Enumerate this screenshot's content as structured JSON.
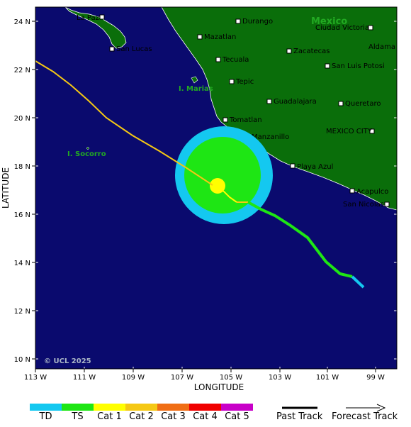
{
  "map": {
    "copyright": "© UCL 2025",
    "axis": {
      "xlabel": "LONGITUDE",
      "ylabel": "LATITUDE",
      "x_ticks": [
        "113 W",
        "111 W",
        "109 W",
        "107 W",
        "105 W",
        "103 W",
        "101 W",
        "99 W"
      ],
      "y_ticks": [
        "24 N",
        "22 N",
        "20 N",
        "18 N",
        "16 N",
        "14 N",
        "12 N",
        "10 N"
      ]
    },
    "country_label": "Mexico",
    "islands": [
      "I. Marias",
      "I. Socorro"
    ],
    "cities": [
      {
        "name": "La Paz"
      },
      {
        "name": "San Lucas"
      },
      {
        "name": "Durango"
      },
      {
        "name": "Mazatlan"
      },
      {
        "name": "Tecuala"
      },
      {
        "name": "Tepic"
      },
      {
        "name": "Zacatecas"
      },
      {
        "name": "Ciudad Victoria"
      },
      {
        "name": "Aldama"
      },
      {
        "name": "San Luis Potosi"
      },
      {
        "name": "Guadalajara"
      },
      {
        "name": "Queretaro"
      },
      {
        "name": "Tomatlan"
      },
      {
        "name": "Manzanillo"
      },
      {
        "name": "MEXICO CITY"
      },
      {
        "name": "Playa Azul"
      },
      {
        "name": "Acapulco"
      },
      {
        "name": "San Nicolas"
      }
    ],
    "legend": {
      "categories": [
        {
          "label": "TD",
          "color": "#14c8f0"
        },
        {
          "label": "TS",
          "color": "#1ee614"
        },
        {
          "label": "Cat 1",
          "color": "#ffff00"
        },
        {
          "label": "Cat 2",
          "color": "#f5c814"
        },
        {
          "label": "Cat 3",
          "color": "#f06e14"
        },
        {
          "label": "Cat 4",
          "color": "#f00000"
        },
        {
          "label": "Cat 5",
          "color": "#c800c8"
        }
      ],
      "past_track": "Past Track",
      "forecast_track": "Forecast Track"
    },
    "colors": {
      "ocean": "#0a0a6e",
      "land": "#0a6e0a"
    }
  }
}
